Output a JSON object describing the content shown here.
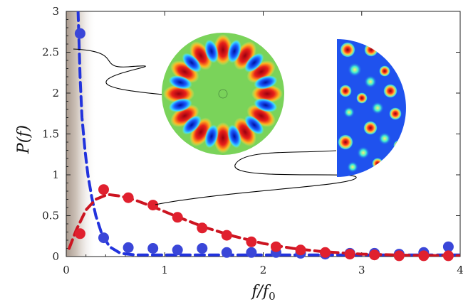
{
  "chart_data": {
    "type": "scatter",
    "title": "",
    "xlabel": "f/f0",
    "ylabel": "P(f)",
    "xlim": [
      0,
      4
    ],
    "ylim": [
      0,
      3
    ],
    "x_ticks": [
      "0",
      "1",
      "2",
      "3",
      "4"
    ],
    "y_ticks": [
      "0",
      "0.5",
      "1",
      "1.5",
      "2",
      "2.5",
      "3"
    ],
    "x_tick_values": [
      0,
      1,
      2,
      3,
      4
    ],
    "y_tick_values": [
      0,
      0.5,
      1,
      1.5,
      2,
      2.5,
      3
    ],
    "series": [
      {
        "name": "blue-data",
        "color": "#3a46d8",
        "points": [
          [
            0.14,
            2.73
          ],
          [
            0.38,
            0.23
          ],
          [
            0.63,
            0.11
          ],
          [
            0.88,
            0.1
          ],
          [
            1.13,
            0.08
          ],
          [
            1.38,
            0.1
          ],
          [
            1.63,
            0.05
          ],
          [
            1.88,
            0.05
          ],
          [
            2.13,
            0.05
          ],
          [
            2.38,
            0.04
          ],
          [
            2.63,
            0.03
          ],
          [
            2.88,
            0.04
          ],
          [
            3.13,
            0.04
          ],
          [
            3.38,
            0.03
          ],
          [
            3.63,
            0.05
          ],
          [
            3.88,
            0.12
          ]
        ]
      },
      {
        "name": "red-data",
        "color": "#e0202e",
        "points": [
          [
            0.14,
            0.28
          ],
          [
            0.38,
            0.82
          ],
          [
            0.63,
            0.72
          ],
          [
            0.88,
            0.63
          ],
          [
            1.13,
            0.48
          ],
          [
            1.38,
            0.35
          ],
          [
            1.63,
            0.26
          ],
          [
            1.88,
            0.18
          ],
          [
            2.13,
            0.12
          ],
          [
            2.38,
            0.08
          ],
          [
            2.63,
            0.05
          ],
          [
            2.88,
            0.03
          ],
          [
            3.13,
            0.02
          ],
          [
            3.38,
            0.01
          ],
          [
            3.63,
            0.01
          ],
          [
            3.88,
            0.01
          ]
        ]
      }
    ],
    "fits": [
      {
        "name": "blue-fit",
        "color": "#2233dd",
        "points": [
          [
            0.12,
            3.0
          ],
          [
            0.14,
            2.2
          ],
          [
            0.16,
            1.7
          ],
          [
            0.19,
            1.3
          ],
          [
            0.22,
            1.0
          ],
          [
            0.26,
            0.72
          ],
          [
            0.3,
            0.5
          ],
          [
            0.36,
            0.28
          ],
          [
            0.44,
            0.12
          ],
          [
            0.55,
            0.04
          ],
          [
            0.7,
            0.02
          ],
          [
            1.0,
            0.02
          ],
          [
            2.0,
            0.02
          ],
          [
            3.0,
            0.02
          ],
          [
            4.0,
            0.02
          ]
        ]
      },
      {
        "name": "red-fit",
        "color": "#cc1420",
        "points": [
          [
            0.03,
            0.1
          ],
          [
            0.1,
            0.32
          ],
          [
            0.2,
            0.57
          ],
          [
            0.3,
            0.7
          ],
          [
            0.42,
            0.76
          ],
          [
            0.55,
            0.74
          ],
          [
            0.7,
            0.69
          ],
          [
            0.9,
            0.6
          ],
          [
            1.1,
            0.5
          ],
          [
            1.4,
            0.36
          ],
          [
            1.7,
            0.25
          ],
          [
            2.0,
            0.16
          ],
          [
            2.3,
            0.1
          ],
          [
            2.6,
            0.06
          ],
          [
            3.0,
            0.03
          ],
          [
            3.5,
            0.015
          ],
          [
            4.0,
            0.01
          ]
        ]
      }
    ],
    "insets": [
      {
        "name": "circular-mode-pattern",
        "description_icon": "circular-billiard-mode"
      },
      {
        "name": "half-disk-mode-pattern",
        "description_icon": "half-stadium-billiard-mode"
      }
    ]
  }
}
